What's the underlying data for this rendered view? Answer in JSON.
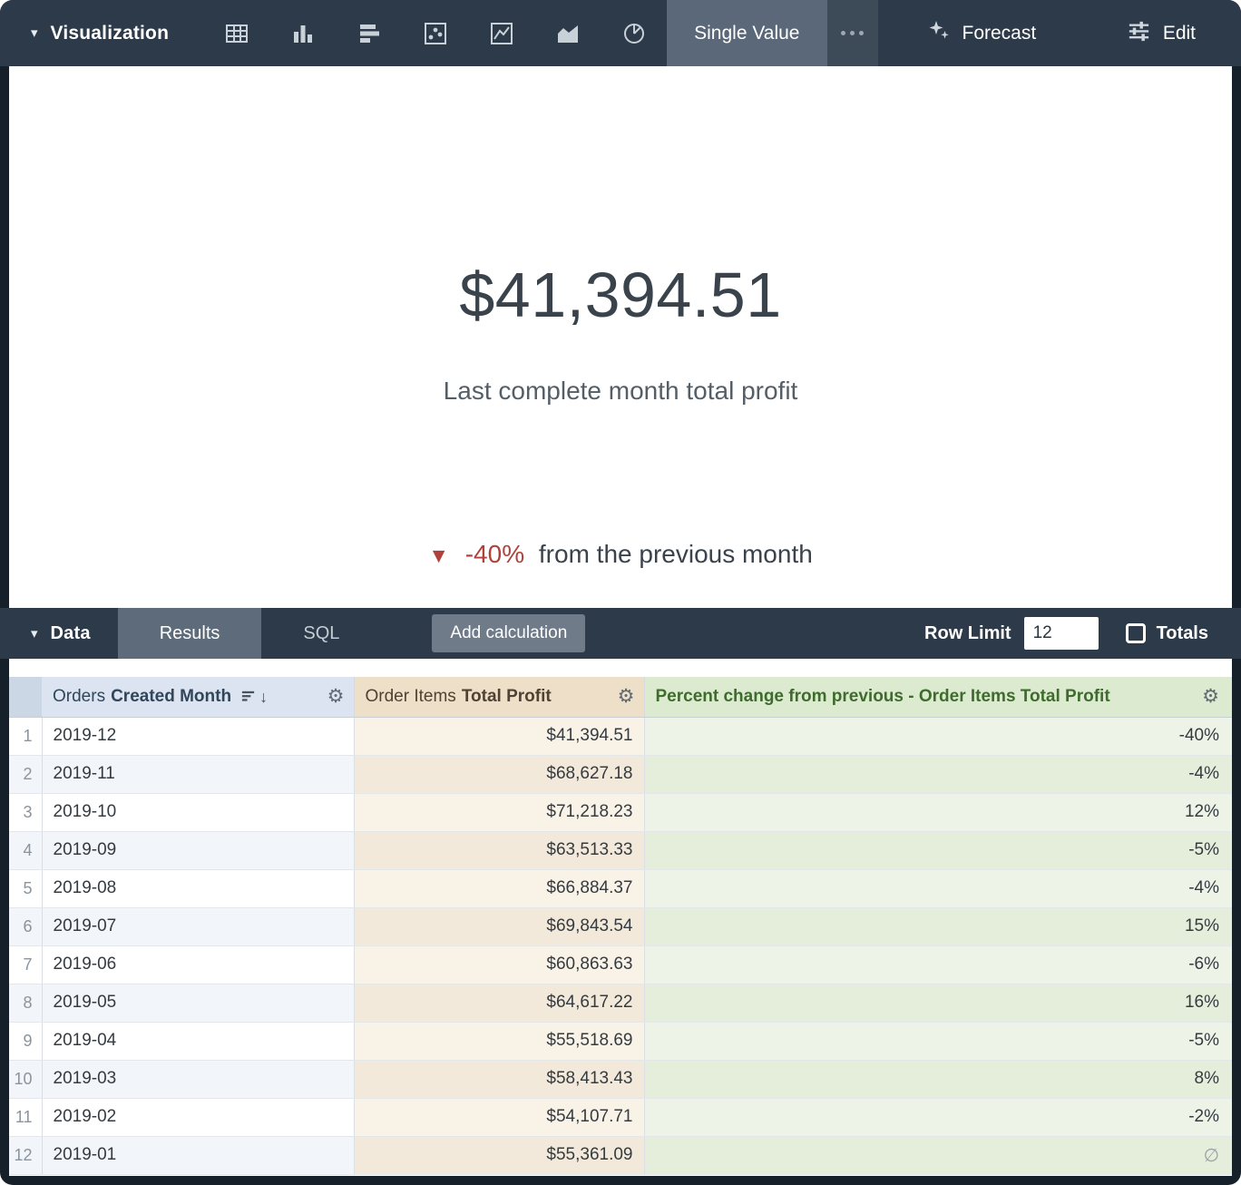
{
  "toolbar": {
    "visualization_label": "Visualization",
    "chart_type_icons": [
      "table-icon",
      "bar-chart-icon",
      "horizontal-bar-chart-icon",
      "scatter-plot-icon",
      "line-chart-icon",
      "area-chart-icon",
      "pie-chart-icon"
    ],
    "single_value_tab_label": "Single Value",
    "forecast_label": "Forecast",
    "edit_label": "Edit"
  },
  "visualization": {
    "value": "$41,394.51",
    "subtitle": "Last complete month total profit",
    "comparison_arrow": "▼",
    "comparison_percent": "-40%",
    "comparison_text": "from the previous month",
    "accent_red": "#b0413a",
    "value_color": "#3a434c"
  },
  "data_bar": {
    "data_label": "Data",
    "tabs": [
      {
        "label": "Results",
        "active": true
      },
      {
        "label": "SQL",
        "active": false
      }
    ],
    "add_calculation_label": "Add calculation",
    "row_limit_label": "Row Limit",
    "row_limit_value": "12",
    "totals_label": "Totals",
    "totals_checked": false
  },
  "table": {
    "columns": [
      {
        "prefix": "Orders",
        "label": "Created Month",
        "header_bg": "#dbe4f0",
        "sorted": "desc"
      },
      {
        "prefix": "Order Items",
        "label": "Total Profit",
        "header_bg": "#eedfc9"
      },
      {
        "prefix": "",
        "label": "Percent change from previous - Order Items Total Profit",
        "header_bg": "#dcead0"
      }
    ],
    "gear_icon": "⚙",
    "null_symbol": "∅",
    "rows": [
      {
        "n": "1",
        "month": "2019-12",
        "profit": "$41,394.51",
        "pct": "-40%"
      },
      {
        "n": "2",
        "month": "2019-11",
        "profit": "$68,627.18",
        "pct": "-4%"
      },
      {
        "n": "3",
        "month": "2019-10",
        "profit": "$71,218.23",
        "pct": "12%"
      },
      {
        "n": "4",
        "month": "2019-09",
        "profit": "$63,513.33",
        "pct": "-5%"
      },
      {
        "n": "5",
        "month": "2019-08",
        "profit": "$66,884.37",
        "pct": "-4%"
      },
      {
        "n": "6",
        "month": "2019-07",
        "profit": "$69,843.54",
        "pct": "15%"
      },
      {
        "n": "7",
        "month": "2019-06",
        "profit": "$60,863.63",
        "pct": "-6%"
      },
      {
        "n": "8",
        "month": "2019-05",
        "profit": "$64,617.22",
        "pct": "16%"
      },
      {
        "n": "9",
        "month": "2019-04",
        "profit": "$55,518.69",
        "pct": "-5%"
      },
      {
        "n": "10",
        "month": "2019-03",
        "profit": "$58,413.43",
        "pct": "8%"
      },
      {
        "n": "11",
        "month": "2019-02",
        "profit": "$54,107.71",
        "pct": "-2%"
      },
      {
        "n": "12",
        "month": "2019-01",
        "profit": "$55,361.09",
        "pct": "∅",
        "is_null": true
      }
    ]
  }
}
